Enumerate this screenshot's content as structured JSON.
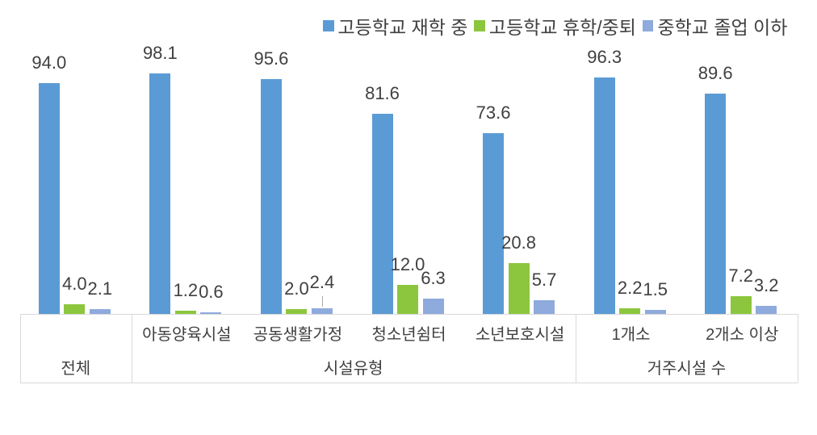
{
  "chart_data": {
    "type": "bar",
    "categories": [
      "전체",
      "아동양육시설",
      "공동생활가정",
      "청소년쉼터",
      "소년보호시설",
      "1개소",
      "2개소 이상"
    ],
    "series": [
      {
        "name": "고등학교 재학 중",
        "color": "#5B9BD5",
        "values": [
          94.0,
          98.1,
          95.6,
          81.6,
          73.6,
          96.3,
          89.6
        ]
      },
      {
        "name": "고등학교 휴학/중퇴",
        "color": "#8CC63E",
        "values": [
          4.0,
          1.2,
          2.0,
          12.0,
          20.8,
          2.2,
          7.2
        ]
      },
      {
        "name": "중학교 졸업 이하",
        "color": "#8FAADC",
        "values": [
          2.1,
          0.6,
          2.4,
          6.3,
          5.7,
          1.5,
          3.2
        ]
      }
    ],
    "value_label_decimals": 1,
    "ylim": [
      0,
      120
    ],
    "grid": false,
    "legend_position": "top",
    "axis_groups": [
      {
        "label": "전체",
        "span": 1,
        "show_category_labels": false
      },
      {
        "label": "시설유형",
        "span": 4,
        "show_category_labels": true
      },
      {
        "label": "거주시설 수",
        "span": 2,
        "show_category_labels": true
      }
    ],
    "label_adjustments": [
      {
        "series": 2,
        "category": 2,
        "raise": 7,
        "leader": true
      }
    ]
  },
  "colors": {
    "text": "#404040",
    "axis_line": "#D9D9D9",
    "leader_line": "#A6A6A6",
    "background": "#FFFFFF"
  }
}
